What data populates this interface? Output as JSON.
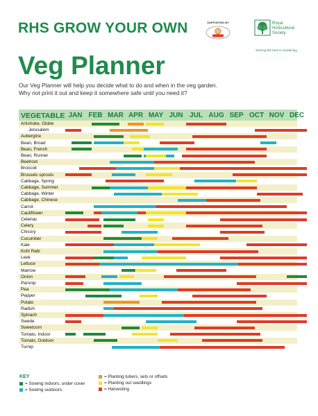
{
  "header": {
    "brand_title": "RHS GROW YOUR OWN",
    "supported_by": "SUPPORTED BY",
    "society_name_lines": [
      "Royal",
      "Horticultural",
      "Society"
    ],
    "tagline": "Sharing the best in Gardening"
  },
  "page_title": "Veg Planner",
  "intro": [
    "Our Veg Planner will help you decide what to do and when in the veg garden.",
    "Why not print it out and keep it somewhere safe until you need it?"
  ],
  "colors": {
    "indoors": "#1e8a3e",
    "outdoors": "#22b1c8",
    "tubers": "#f0922b",
    "seedlings": "#f2e527",
    "harvesting": "#e03a27",
    "brand_green": "#1f8b4c",
    "header_band": "#b9dfb7",
    "stripe": "#f3f0c9"
  },
  "table": {
    "vegetable_header": "VEGETABLE",
    "months": [
      "JAN",
      "FEB",
      "MAR",
      "APR",
      "MAY",
      "JUN",
      "JUL",
      "AUG",
      "SEP",
      "OCT",
      "NOV",
      "DEC"
    ],
    "rows": [
      {
        "name": "Artichoke, Globe",
        "bars": [
          [
            "indoors",
            1.3,
            2.7
          ],
          [
            "tubers",
            3.1,
            3.9
          ],
          [
            "seedlings",
            4.0,
            4.9
          ],
          [
            "harvesting",
            6.0,
            8.0
          ]
        ]
      },
      {
        "name": "Jerusalem",
        "indent": true,
        "bars": [
          [
            "harvesting",
            0.0,
            0.8
          ],
          [
            "tubers",
            2.2,
            4.1
          ],
          [
            "harvesting",
            9.4,
            12.0
          ]
        ]
      },
      {
        "name": "Aubergine",
        "bars": [
          [
            "indoors",
            1.4,
            2.9
          ],
          [
            "seedlings",
            3.2,
            4.2
          ],
          [
            "harvesting",
            6.3,
            10.0
          ]
        ]
      },
      {
        "name": "Bean, Broad",
        "bars": [
          [
            "indoors",
            0.3,
            1.3
          ],
          [
            "outdoors",
            1.4,
            2.9
          ],
          [
            "seedlings",
            2.9,
            3.7
          ],
          [
            "harvesting",
            4.7,
            6.4
          ],
          [
            "outdoors",
            9.7,
            10.5
          ]
        ]
      },
      {
        "name": "Bean, French",
        "bars": [
          [
            "indoors",
            0.3,
            1.3
          ],
          [
            "seedlings",
            3.3,
            3.9
          ],
          [
            "outdoors",
            3.9,
            5.6
          ],
          [
            "harvesting",
            6.0,
            10.0
          ]
        ]
      },
      {
        "name": "Bean, Runner",
        "bars": [
          [
            "indoors",
            2.9,
            3.8
          ],
          [
            "outdoors",
            3.9,
            5.4
          ],
          [
            "seedlings",
            4.0,
            5.0
          ],
          [
            "harvesting",
            5.8,
            10.0
          ]
        ]
      },
      {
        "name": "Beetroot",
        "bars": [
          [
            "outdoors",
            2.2,
            6.3
          ],
          [
            "harvesting",
            4.4,
            9.4
          ]
        ]
      },
      {
        "name": "Broccoli",
        "bars": [
          [
            "harvesting",
            0.7,
            12.0
          ],
          [
            "outdoors",
            2.5,
            4.4
          ],
          [
            "seedlings",
            4.4,
            5.7
          ]
        ]
      },
      {
        "name": "Brussels sprouts",
        "bars": [
          [
            "harvesting",
            0.0,
            1.3
          ],
          [
            "outdoors",
            2.3,
            3.5
          ],
          [
            "seedlings",
            4.0,
            5.3
          ],
          [
            "harvesting",
            8.3,
            12.0
          ]
        ]
      },
      {
        "name": "Cabbage, Spring",
        "bars": [
          [
            "harvesting",
            2.0,
            4.9
          ],
          [
            "outdoors",
            6.4,
            8.5
          ],
          [
            "seedlings",
            8.5,
            9.5
          ]
        ]
      },
      {
        "name": "Cabbage, Summer",
        "bars": [
          [
            "indoors",
            1.3,
            2.2
          ],
          [
            "outdoors",
            2.2,
            4.7
          ],
          [
            "seedlings",
            4.1,
            6.0
          ],
          [
            "harvesting",
            6.0,
            9.5
          ]
        ]
      },
      {
        "name": "Cabbage, Winter",
        "bars": [
          [
            "outdoors",
            2.4,
            4.8
          ],
          [
            "seedlings",
            4.8,
            6.6
          ],
          [
            "harvesting",
            9.5,
            11.8
          ]
        ]
      },
      {
        "name": "Cabbage, Chinese",
        "bars": [
          [
            "outdoors",
            5.6,
            7.0
          ],
          [
            "harvesting",
            7.0,
            9.7
          ]
        ]
      },
      {
        "name": "Carrot",
        "bars": [
          [
            "outdoors",
            1.4,
            6.2
          ],
          [
            "harvesting",
            4.5,
            11.0
          ]
        ]
      },
      {
        "name": "Cauliflower",
        "bars": [
          [
            "indoors",
            0.0,
            0.9
          ],
          [
            "harvesting",
            1.4,
            12.0
          ],
          [
            "outdoors",
            1.8,
            3.6
          ],
          [
            "seedlings",
            4.0,
            6.0
          ]
        ]
      },
      {
        "name": "Celeriac",
        "bars": [
          [
            "harvesting",
            0.0,
            1.7
          ],
          [
            "indoors",
            1.9,
            3.5
          ],
          [
            "seedlings",
            4.1,
            4.9
          ],
          [
            "harvesting",
            7.7,
            12.0
          ]
        ]
      },
      {
        "name": "Celery",
        "bars": [
          [
            "harvesting",
            1.1,
            1.8
          ],
          [
            "indoors",
            1.9,
            2.9
          ],
          [
            "seedlings",
            4.1,
            4.9
          ],
          [
            "harvesting",
            6.0,
            9.8
          ]
        ]
      },
      {
        "name": "Chicory",
        "bars": [
          [
            "harvesting",
            0.0,
            1.8
          ],
          [
            "outdoors",
            2.8,
            4.6
          ],
          [
            "harvesting",
            7.7,
            9.9
          ]
        ]
      },
      {
        "name": "Cucumber",
        "bars": [
          [
            "indoors",
            1.9,
            3.8
          ],
          [
            "seedlings",
            3.8,
            4.6
          ],
          [
            "harvesting",
            5.3,
            8.1
          ]
        ]
      },
      {
        "name": "Kale",
        "bars": [
          [
            "harvesting",
            0.0,
            3.6
          ],
          [
            "outdoors",
            2.4,
            4.4
          ],
          [
            "seedlings",
            4.4,
            6.7
          ],
          [
            "harvesting",
            9.0,
            12.0
          ]
        ]
      },
      {
        "name": "Kohl Rabi",
        "bars": [
          [
            "outdoors",
            1.9,
            6.4
          ],
          [
            "harvesting",
            4.6,
            9.6
          ]
        ]
      },
      {
        "name": "Leek",
        "bars": [
          [
            "harvesting",
            0.0,
            1.9
          ],
          [
            "indoors",
            1.4,
            2.4
          ],
          [
            "outdoors",
            2.4,
            3.1
          ],
          [
            "seedlings",
            3.8,
            6.0
          ],
          [
            "harvesting",
            7.7,
            12.0
          ]
        ]
      },
      {
        "name": "Lettuce",
        "bars": [
          [
            "harvesting",
            0.0,
            12.0
          ],
          [
            "outdoors",
            1.7,
            8.6
          ]
        ]
      },
      {
        "name": "Marrow",
        "bars": [
          [
            "indoors",
            2.8,
            3.5
          ],
          [
            "seedlings",
            3.5,
            4.5
          ],
          [
            "harvesting",
            5.5,
            8.0
          ]
        ]
      },
      {
        "name": "Onion",
        "bars": [
          [
            "harvesting",
            0.0,
            1.0
          ],
          [
            "outdoors",
            1.8,
            2.6
          ],
          [
            "seedlings",
            2.7,
            3.4
          ],
          [
            "harvesting",
            4.9,
            9.5
          ],
          [
            "indoors",
            11.0,
            12.0
          ]
        ]
      },
      {
        "name": "Parsnip",
        "bars": [
          [
            "harvesting",
            0.0,
            0.9
          ],
          [
            "outdoors",
            1.9,
            3.8
          ],
          [
            "harvesting",
            8.5,
            12.0
          ]
        ]
      },
      {
        "name": "Pea",
        "bars": [
          [
            "outdoors",
            0.0,
            8.3
          ],
          [
            "indoors",
            0.0,
            2.2
          ],
          [
            "harvesting",
            5.6,
            9.2
          ]
        ]
      },
      {
        "name": "Pepper",
        "bars": [
          [
            "indoors",
            1.0,
            2.8
          ],
          [
            "seedlings",
            3.7,
            4.6
          ],
          [
            "harvesting",
            6.3,
            10.0
          ]
        ]
      },
      {
        "name": "Potato",
        "bars": [
          [
            "tubers",
            1.9,
            3.7
          ],
          [
            "harvesting",
            4.8,
            9.5
          ]
        ]
      },
      {
        "name": "Radish",
        "bars": [
          [
            "outdoors",
            1.9,
            7.9
          ],
          [
            "harvesting",
            2.4,
            9.8
          ]
        ]
      },
      {
        "name": "Spinach",
        "bars": [
          [
            "harvesting",
            0.0,
            12.0
          ],
          [
            "outdoors",
            1.9,
            5.9
          ]
        ]
      },
      {
        "name": "Swede",
        "bars": [
          [
            "harvesting",
            0.0,
            0.8
          ],
          [
            "outdoors",
            4.0,
            6.5
          ],
          [
            "harvesting",
            8.5,
            12.0
          ]
        ]
      },
      {
        "name": "Sweetcorn",
        "bars": [
          [
            "indoors",
            2.8,
            3.7
          ],
          [
            "seedlings",
            3.8,
            4.6
          ],
          [
            "harvesting",
            6.4,
            9.4
          ]
        ]
      },
      {
        "name": "Tomato, Indoor",
        "bars": [
          [
            "indoors",
            0.0,
            0.5
          ],
          [
            "indoors",
            0.9,
            2.0
          ],
          [
            "seedlings",
            3.3,
            4.6
          ],
          [
            "harvesting",
            5.2,
            9.7
          ]
        ]
      },
      {
        "name": "Tomato, Outdoor",
        "bars": [
          [
            "indoors",
            1.4,
            2.6
          ],
          [
            "seedlings",
            4.6,
            5.6
          ],
          [
            "harvesting",
            6.8,
            9.8
          ]
        ]
      },
      {
        "name": "Turnip",
        "bars": [
          [
            "outdoors",
            2.3,
            7.6
          ],
          [
            "harvesting",
            4.7,
            10.9
          ]
        ]
      }
    ]
  },
  "key": {
    "title": "KEY",
    "items": [
      {
        "color": "indoors",
        "label": "= Sowing indoors, under cover"
      },
      {
        "color": "outdoors",
        "label": "= Sowing outdoors"
      },
      {
        "color": "tubers",
        "label": "= Planting tubers, sets or offsets"
      },
      {
        "color": "seedlings",
        "label": "= Planting out seedlings"
      },
      {
        "color": "harvesting",
        "label": "= Harvesting"
      }
    ]
  }
}
